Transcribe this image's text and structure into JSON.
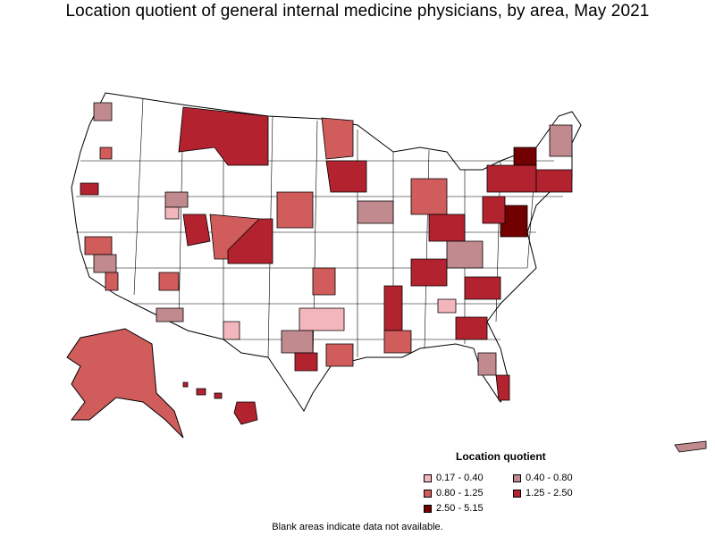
{
  "title": "Location quotient of general internal medicine physicians, by area, May 2021",
  "legend": {
    "title": "Location quotient",
    "items": [
      {
        "label": "0.17 - 0.40",
        "color": "#f4b6bd"
      },
      {
        "label": "0.40 - 0.80",
        "color": "#c08a8e"
      },
      {
        "label": "0.80 - 1.25",
        "color": "#d05c5c"
      },
      {
        "label": "1.25 - 2.50",
        "color": "#b2232f"
      },
      {
        "label": "2.50 - 5.15",
        "color": "#730000"
      }
    ]
  },
  "note": "Blank areas indicate data not available.",
  "colors": {
    "outline": "#000000",
    "blank": "#ffffff",
    "c1": "#f4b6bd",
    "c2": "#c08a8e",
    "c3": "#d05c5c",
    "c4": "#b2232f",
    "c5": "#730000"
  }
}
